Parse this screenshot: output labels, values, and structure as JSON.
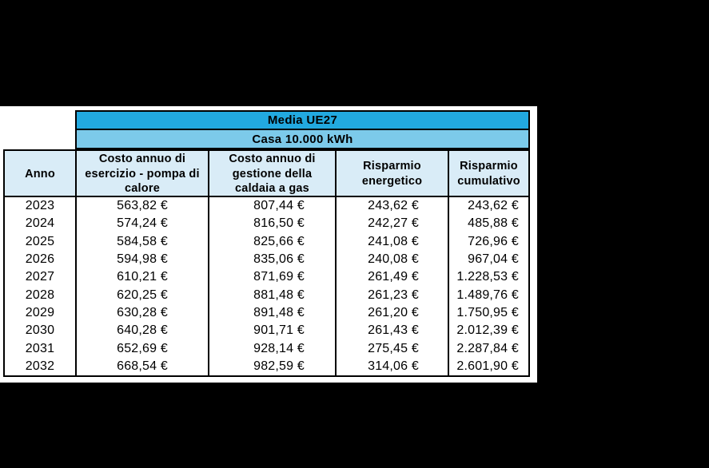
{
  "table": {
    "region_header": "Media UE27",
    "sub_header": "Casa 10.000 kWh",
    "columns": [
      "Anno",
      "Costo annuo di esercizio - pompa di calore",
      "Costo annuo di gestione della caldaia a gas",
      "Risparmio energetico",
      "Risparmio cumulativo"
    ],
    "rows": [
      [
        "2023",
        "563,82 €",
        "807,44 €",
        "243,62 €",
        "243,62 €"
      ],
      [
        "2024",
        "574,24 €",
        "816,50 €",
        "242,27 €",
        "485,88 €"
      ],
      [
        "2025",
        "584,58 €",
        "825,66 €",
        "241,08 €",
        "726,96 €"
      ],
      [
        "2026",
        "594,98 €",
        "835,06 €",
        "240,08 €",
        "967,04 €"
      ],
      [
        "2027",
        "610,21 €",
        "871,69 €",
        "261,49 €",
        "1.228,53 €"
      ],
      [
        "2028",
        "620,25 €",
        "881,48 €",
        "261,23 €",
        "1.489,76 €"
      ],
      [
        "2029",
        "630,28 €",
        "891,48 €",
        "261,20 €",
        "1.750,95 €"
      ],
      [
        "2030",
        "640,28 €",
        "901,71 €",
        "261,43 €",
        "2.012,39 €"
      ],
      [
        "2031",
        "652,69 €",
        "928,14 €",
        "275,45 €",
        "2.287,84 €"
      ],
      [
        "2032",
        "668,54 €",
        "982,59 €",
        "314,06 €",
        "2.601,90 €"
      ]
    ]
  },
  "chart_data": {
    "type": "table",
    "title": "Media UE27 — Casa 10.000 kWh",
    "categories": [
      2023,
      2024,
      2025,
      2026,
      2027,
      2028,
      2029,
      2030,
      2031,
      2032
    ],
    "series": [
      {
        "name": "Costo annuo di esercizio - pompa di calore",
        "values": [
          563.82,
          574.24,
          584.58,
          594.98,
          610.21,
          620.25,
          630.28,
          640.28,
          652.69,
          668.54
        ]
      },
      {
        "name": "Costo annuo di gestione della caldaia a gas",
        "values": [
          807.44,
          816.5,
          825.66,
          835.06,
          871.69,
          881.48,
          891.48,
          901.71,
          928.14,
          982.59
        ]
      },
      {
        "name": "Risparmio energetico",
        "values": [
          243.62,
          242.27,
          241.08,
          240.08,
          261.49,
          261.23,
          261.2,
          261.43,
          275.45,
          314.06
        ]
      },
      {
        "name": "Risparmio cumulativo",
        "values": [
          243.62,
          485.88,
          726.96,
          967.04,
          1228.53,
          1489.76,
          1750.95,
          2012.39,
          2287.84,
          2601.9
        ]
      }
    ],
    "unit": "€"
  },
  "colors": {
    "canvas_bg": "#000000",
    "page_bg": "#FFFFFF",
    "region_header_bg": "#22A9E0",
    "sub_header_bg": "#7CCAEA",
    "column_header_bg": "#D9ECF7",
    "border": "#000000"
  }
}
